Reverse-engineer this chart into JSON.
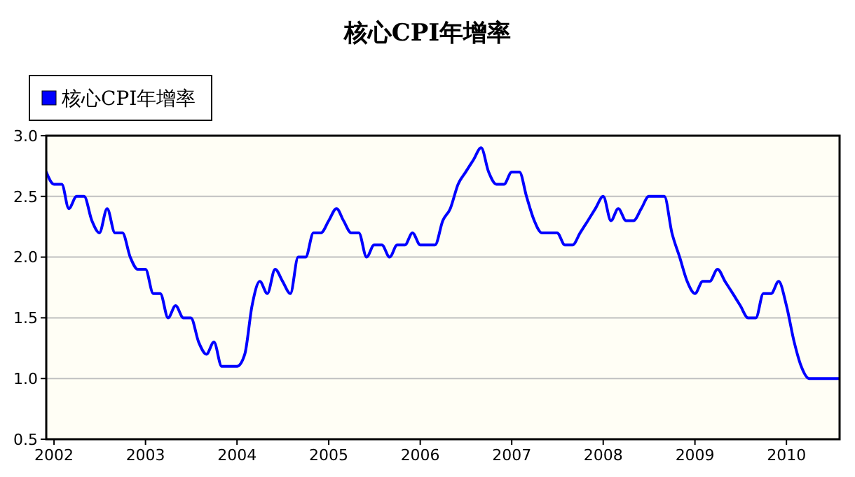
{
  "chart_data": {
    "type": "line",
    "title": "核心CPI年增率",
    "x": [
      "2001-12",
      "2002-01",
      "2002-02",
      "2002-03",
      "2002-04",
      "2002-05",
      "2002-06",
      "2002-07",
      "2002-08",
      "2002-09",
      "2002-10",
      "2002-11",
      "2002-12",
      "2003-01",
      "2003-02",
      "2003-03",
      "2003-04",
      "2003-05",
      "2003-06",
      "2003-07",
      "2003-08",
      "2003-09",
      "2003-10",
      "2003-11",
      "2003-12",
      "2004-01",
      "2004-02",
      "2004-03",
      "2004-04",
      "2004-05",
      "2004-06",
      "2004-07",
      "2004-08",
      "2004-09",
      "2004-10",
      "2004-11",
      "2004-12",
      "2005-01",
      "2005-02",
      "2005-03",
      "2005-04",
      "2005-05",
      "2005-06",
      "2005-07",
      "2005-08",
      "2005-09",
      "2005-10",
      "2005-11",
      "2005-12",
      "2006-01",
      "2006-02",
      "2006-03",
      "2006-04",
      "2006-05",
      "2006-06",
      "2006-07",
      "2006-08",
      "2006-09",
      "2006-10",
      "2006-11",
      "2006-12",
      "2007-01",
      "2007-02",
      "2007-03",
      "2007-04",
      "2007-05",
      "2007-06",
      "2007-07",
      "2007-08",
      "2007-09",
      "2007-10",
      "2007-11",
      "2007-12",
      "2008-01",
      "2008-02",
      "2008-03",
      "2008-04",
      "2008-05",
      "2008-06",
      "2008-07",
      "2008-08",
      "2008-09",
      "2008-10",
      "2008-11",
      "2008-12",
      "2009-01",
      "2009-02",
      "2009-03",
      "2009-04",
      "2009-05",
      "2009-06",
      "2009-07",
      "2009-08",
      "2009-09",
      "2009-10",
      "2009-11",
      "2009-12",
      "2010-01",
      "2010-02",
      "2010-03",
      "2010-04",
      "2010-05",
      "2010-06",
      "2010-07",
      "2010-08"
    ],
    "series": [
      {
        "name": "核心CPI年增率",
        "color": "#0000ff",
        "values": [
          2.7,
          2.6,
          2.6,
          2.4,
          2.5,
          2.5,
          2.3,
          2.2,
          2.4,
          2.2,
          2.2,
          2.0,
          1.9,
          1.9,
          1.7,
          1.7,
          1.5,
          1.6,
          1.5,
          1.5,
          1.3,
          1.2,
          1.3,
          1.1,
          1.1,
          1.1,
          1.2,
          1.6,
          1.8,
          1.7,
          1.9,
          1.8,
          1.7,
          2.0,
          2.0,
          2.2,
          2.2,
          2.3,
          2.4,
          2.3,
          2.2,
          2.2,
          2.0,
          2.1,
          2.1,
          2.0,
          2.1,
          2.1,
          2.2,
          2.1,
          2.1,
          2.1,
          2.3,
          2.4,
          2.6,
          2.7,
          2.8,
          2.9,
          2.7,
          2.6,
          2.6,
          2.7,
          2.7,
          2.5,
          2.3,
          2.2,
          2.2,
          2.2,
          2.1,
          2.1,
          2.2,
          2.3,
          2.4,
          2.5,
          2.3,
          2.4,
          2.3,
          2.3,
          2.4,
          2.5,
          2.5,
          2.5,
          2.2,
          2.0,
          1.8,
          1.7,
          1.8,
          1.8,
          1.9,
          1.8,
          1.7,
          1.6,
          1.5,
          1.5,
          1.7,
          1.7,
          1.8,
          1.6,
          1.3,
          1.1,
          1.0,
          1.0,
          1.0,
          1.0,
          1.0
        ]
      }
    ],
    "xlim": [
      "2001-12",
      "2010-08"
    ],
    "xticks": [
      "2002",
      "2003",
      "2004",
      "2005",
      "2006",
      "2007",
      "2008",
      "2009",
      "2010"
    ],
    "ylim": [
      0.5,
      3.0
    ],
    "yticks": [
      {
        "value": 0.5,
        "label": "0.5"
      },
      {
        "value": 1.0,
        "label": "1.0"
      },
      {
        "value": 1.5,
        "label": "1.5"
      },
      {
        "value": 2.0,
        "label": "2.0"
      },
      {
        "value": 2.5,
        "label": "2.5"
      },
      {
        "value": 3.0,
        "label": "3.0"
      }
    ],
    "grid": "y",
    "legend": "top left",
    "marker": "none",
    "line_style": "solid"
  }
}
